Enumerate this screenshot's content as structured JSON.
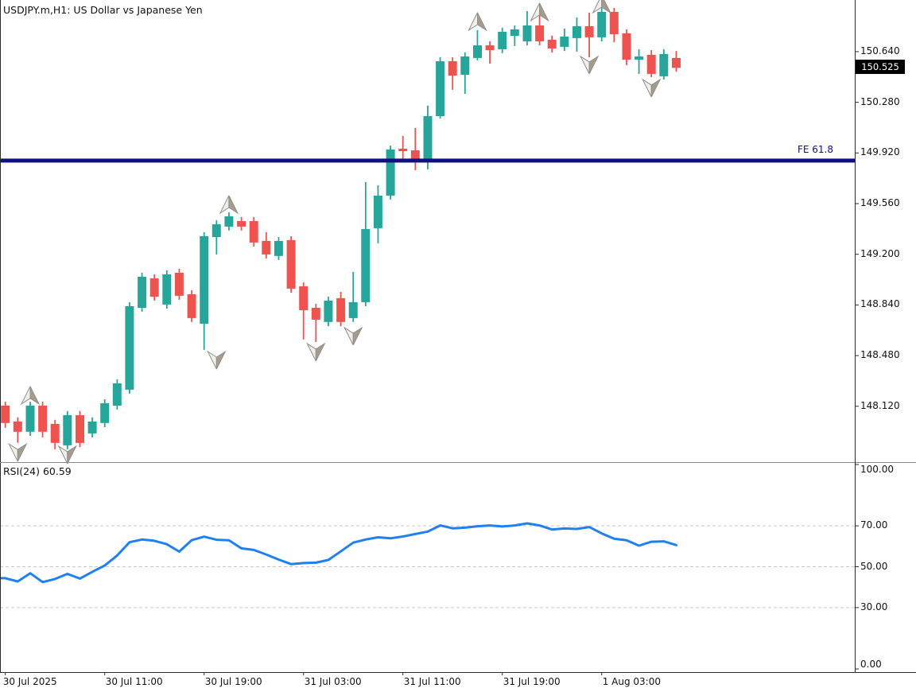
{
  "header": {
    "title": "USDJPY.m,H1:  US Dollar vs Japanese Yen"
  },
  "price_axis": {
    "current_price_tag": "150.525",
    "ticks": [
      {
        "label": "150.640",
        "price": 150.64
      },
      {
        "label": "150.280",
        "price": 150.28
      },
      {
        "label": "149.920",
        "price": 149.92
      },
      {
        "label": "149.560",
        "price": 149.56
      },
      {
        "label": "149.200",
        "price": 149.2
      },
      {
        "label": "148.840",
        "price": 148.84
      },
      {
        "label": "148.480",
        "price": 148.48
      },
      {
        "label": "148.120",
        "price": 148.12
      }
    ]
  },
  "rsi_axis": {
    "ticks": [
      {
        "label": "100.00",
        "value": 100
      },
      {
        "label": "70.00",
        "value": 70
      },
      {
        "label": "50.00",
        "value": 50
      },
      {
        "label": "30.00",
        "value": 30
      },
      {
        "label": "0.00",
        "value": 0
      }
    ]
  },
  "time_axis": {
    "ticks": [
      {
        "label": "30 Jul 2025",
        "index": 0
      },
      {
        "label": "30 Jul 11:00",
        "index": 8
      },
      {
        "label": "30 Jul 19:00",
        "index": 16
      },
      {
        "label": "31 Jul 03:00",
        "index": 24
      },
      {
        "label": "31 Jul 11:00",
        "index": 32
      },
      {
        "label": "31 Jul 19:00",
        "index": 40
      },
      {
        "label": "1 Aug 03:00",
        "index": 48
      }
    ]
  },
  "chart_data": {
    "type": "candlestick",
    "symbol": "USDJPY.m",
    "timeframe": "H1",
    "description": "US Dollar vs Japanese Yen",
    "start_time": "30 Jul 2025 03:00",
    "interval_hours": 1,
    "price_range": [
      147.729,
      151.007
    ],
    "bullish_color": "#26a69a",
    "bearish_color": "#ef5350",
    "current_price": 150.525,
    "candles": [
      [
        148.125,
        148.153,
        147.967,
        148.001
      ],
      [
        148.012,
        148.041,
        147.86,
        147.939
      ],
      [
        147.939,
        148.153,
        147.91,
        148.125
      ],
      [
        148.125,
        148.153,
        147.899,
        147.939
      ],
      [
        147.995,
        148.024,
        147.815,
        147.86
      ],
      [
        147.843,
        148.086,
        147.815,
        148.057
      ],
      [
        148.057,
        148.086,
        147.831,
        147.86
      ],
      [
        147.927,
        148.041,
        147.899,
        148.012
      ],
      [
        148.001,
        148.17,
        147.972,
        148.142
      ],
      [
        148.125,
        148.311,
        148.097,
        148.283
      ],
      [
        148.238,
        148.86,
        148.21,
        148.831
      ],
      [
        148.82,
        149.069,
        148.792,
        149.041
      ],
      [
        149.029,
        149.058,
        148.871,
        148.899
      ],
      [
        148.843,
        149.086,
        148.814,
        149.058
      ],
      [
        149.069,
        149.097,
        148.877,
        148.905
      ],
      [
        148.916,
        148.944,
        148.719,
        148.747
      ],
      [
        148.707,
        149.357,
        148.521,
        149.329
      ],
      [
        149.323,
        149.442,
        149.199,
        149.414
      ],
      [
        149.397,
        149.499,
        149.369,
        149.47
      ],
      [
        149.436,
        149.465,
        149.369,
        149.397
      ],
      [
        149.436,
        149.465,
        149.255,
        149.284
      ],
      [
        149.295,
        149.357,
        149.171,
        149.199
      ],
      [
        149.188,
        149.323,
        149.16,
        149.295
      ],
      [
        149.301,
        149.329,
        148.927,
        148.956
      ],
      [
        148.973,
        149.001,
        148.594,
        148.803
      ],
      [
        148.82,
        148.848,
        148.577,
        148.736
      ],
      [
        148.719,
        148.899,
        148.69,
        148.871
      ],
      [
        148.888,
        148.933,
        148.69,
        148.719
      ],
      [
        148.747,
        149.075,
        148.719,
        148.86
      ],
      [
        148.86,
        149.713,
        148.831,
        149.38
      ],
      [
        149.385,
        149.69,
        149.278,
        149.617
      ],
      [
        149.617,
        149.973,
        149.589,
        149.945
      ],
      [
        149.95,
        150.041,
        149.866,
        149.933
      ],
      [
        149.939,
        150.097,
        149.798,
        149.866
      ],
      [
        149.871,
        150.256,
        149.804,
        150.182
      ],
      [
        150.182,
        150.6,
        150.165,
        150.572
      ],
      [
        150.572,
        150.6,
        150.369,
        150.47
      ],
      [
        150.476,
        150.634,
        150.34,
        150.606
      ],
      [
        150.595,
        150.793,
        150.578,
        150.685
      ],
      [
        150.685,
        150.713,
        150.555,
        150.651
      ],
      [
        150.657,
        150.81,
        150.629,
        150.781
      ],
      [
        150.753,
        150.826,
        150.68,
        150.798
      ],
      [
        150.713,
        150.928,
        150.685,
        150.826
      ],
      [
        150.826,
        150.928,
        150.685,
        150.713
      ],
      [
        150.725,
        150.753,
        150.634,
        150.662
      ],
      [
        150.674,
        150.804,
        150.645,
        150.747
      ],
      [
        150.736,
        150.883,
        150.64,
        150.821
      ],
      [
        150.821,
        150.917,
        150.6,
        150.742
      ],
      [
        150.742,
        150.99,
        150.713,
        150.923
      ],
      [
        150.923,
        150.951,
        150.708,
        150.764
      ],
      [
        150.77,
        150.798,
        150.544,
        150.583
      ],
      [
        150.583,
        150.657,
        150.482,
        150.606
      ],
      [
        150.617,
        150.651,
        150.459,
        150.482
      ],
      [
        150.465,
        150.657,
        150.442,
        150.623
      ],
      [
        150.595,
        150.645,
        150.497,
        150.525
      ]
    ],
    "arrows": [
      {
        "index": 1,
        "direction": "down",
        "price": 147.79
      },
      {
        "index": 2,
        "direction": "up",
        "price": 148.199
      },
      {
        "index": 5,
        "direction": "down",
        "price": 147.775
      },
      {
        "index": 17,
        "direction": "down",
        "price": 148.447
      },
      {
        "index": 18,
        "direction": "up",
        "price": 149.555
      },
      {
        "index": 25,
        "direction": "down",
        "price": 148.504
      },
      {
        "index": 28,
        "direction": "down",
        "price": 148.617
      },
      {
        "index": 38,
        "direction": "up",
        "price": 150.855
      },
      {
        "index": 43,
        "direction": "up",
        "price": 150.923
      },
      {
        "index": 47,
        "direction": "down",
        "price": 150.544
      },
      {
        "index": 48,
        "direction": "up",
        "price": 150.979
      },
      {
        "index": 52,
        "direction": "down",
        "price": 150.38
      }
    ],
    "arrow_colors": {
      "light_face": "#f2efe8",
      "dark_face": "#a79b8c",
      "outline": "#8f8f8f"
    },
    "fib_expansion_line": {
      "label": "FE 61.8",
      "price": 149.866,
      "color": "#10107e"
    },
    "rsi": {
      "label": "RSI(24) 60.59",
      "period": 24,
      "last_value": 60.59,
      "range": [
        0,
        100
      ],
      "gridlines": [
        70,
        50,
        30
      ],
      "line_color": "#2080f0",
      "values": [
        44.4,
        42.8,
        46.8,
        42.5,
        44.0,
        46.5,
        44.2,
        47.5,
        50.6,
        55.5,
        62.0,
        63.3,
        62.7,
        61.0,
        57.4,
        63.0,
        64.7,
        63.2,
        62.9,
        59.0,
        58.2,
        56.0,
        53.5,
        51.3,
        51.8,
        52.0,
        53.3,
        57.5,
        61.8,
        63.3,
        64.4,
        63.9,
        64.8,
        66.0,
        67.2,
        70.2,
        68.8,
        69.1,
        69.8,
        70.2,
        69.7,
        70.2,
        71.2,
        70.2,
        68.2,
        68.7,
        68.5,
        69.4,
        66.3,
        63.7,
        62.9,
        60.3,
        62.2,
        62.4,
        60.59
      ]
    }
  }
}
